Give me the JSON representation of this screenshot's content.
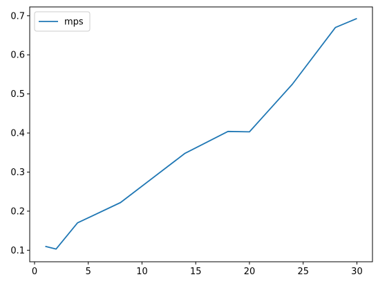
{
  "chart_data": {
    "type": "line",
    "title": "",
    "xlabel": "",
    "ylabel": "",
    "xlim": [
      -0.45,
      31.45
    ],
    "ylim": [
      0.0705,
      0.7226
    ],
    "xticks": [
      0,
      5,
      10,
      15,
      20,
      25,
      30
    ],
    "yticks": [
      0.1,
      0.2,
      0.3,
      0.4,
      0.5,
      0.6,
      0.7
    ],
    "grid": false,
    "legend_position": "top-left",
    "series": [
      {
        "name": "mps",
        "color": "#1f77b4",
        "x": [
          1,
          2,
          4,
          8,
          14,
          18,
          20,
          24,
          28,
          30
        ],
        "y": [
          0.11,
          0.103,
          0.17,
          0.222,
          0.348,
          0.404,
          0.403,
          0.525,
          0.67,
          0.693
        ]
      }
    ]
  }
}
